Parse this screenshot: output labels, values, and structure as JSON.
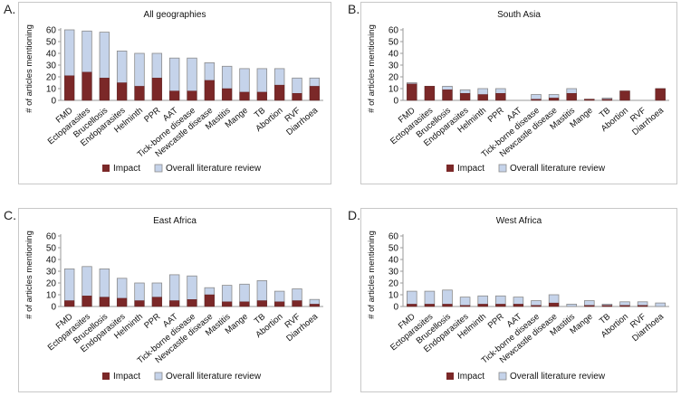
{
  "panel_letters": [
    "A.",
    "B.",
    "C.",
    "D."
  ],
  "chart_data": [
    {
      "type": "bar",
      "stacked": false,
      "overlapped": true,
      "title": "All geographies",
      "xlabel": "",
      "ylabel": "# of articles mentioning",
      "ylim": [
        0,
        60
      ],
      "yticks": [
        0,
        10,
        20,
        30,
        40,
        50,
        60
      ],
      "grid": false,
      "legend": "bottom",
      "categories": [
        "FMD",
        "Ectoparasites",
        "Brucellosis",
        "Endoparasites",
        "Helminth",
        "PPR",
        "AAT",
        "Tick-borne disease",
        "Newcastle disease",
        "Mastitis",
        "Mange",
        "TB",
        "Abortion",
        "RVF",
        "Diarrhoea"
      ],
      "series": [
        {
          "name": "Impact",
          "color": "#7b2828",
          "values": [
            21,
            24,
            19,
            15,
            12,
            19,
            8,
            8,
            17,
            10,
            7,
            7,
            13,
            6,
            12
          ]
        },
        {
          "name": "Overall literature review",
          "color": "#c5d3ea",
          "values": [
            60,
            59,
            58,
            42,
            40,
            40,
            36,
            36,
            32,
            29,
            27,
            27,
            27,
            19,
            19
          ]
        }
      ]
    },
    {
      "type": "bar",
      "stacked": false,
      "overlapped": true,
      "title": "South Asia",
      "xlabel": "",
      "ylabel": "# of articles mentioning",
      "ylim": [
        0,
        60
      ],
      "yticks": [
        0,
        10,
        20,
        30,
        40,
        50,
        60
      ],
      "grid": false,
      "legend": "bottom",
      "categories": [
        "FMD",
        "Ectoparasites",
        "Brucellosis",
        "Endoparasites",
        "Helminth",
        "PPR",
        "AAT",
        "Tick-borne disease",
        "Newcastle disease",
        "Mastitis",
        "Mange",
        "TB",
        "Abortion",
        "RVF",
        "Diarrhoea"
      ],
      "series": [
        {
          "name": "Impact",
          "color": "#7b2828",
          "values": [
            14,
            12,
            9,
            6,
            5,
            6,
            0,
            1,
            2,
            6,
            1,
            1,
            8,
            0,
            10
          ]
        },
        {
          "name": "Overall literature review",
          "color": "#c5d3ea",
          "values": [
            15,
            12,
            12,
            9,
            10,
            10,
            0,
            5,
            5,
            10,
            1,
            2,
            8,
            0,
            10
          ]
        }
      ]
    },
    {
      "type": "bar",
      "stacked": false,
      "overlapped": true,
      "title": "East Africa",
      "xlabel": "",
      "ylabel": "# of articles mentioning",
      "ylim": [
        0,
        60
      ],
      "yticks": [
        0,
        10,
        20,
        30,
        40,
        50,
        60
      ],
      "grid": false,
      "legend": "bottom",
      "categories": [
        "FMD",
        "Ectoparasites",
        "Brucellosis",
        "Endoparasites",
        "Helminth",
        "PPR",
        "AAT",
        "Tick-borne disease",
        "Newcastle disease",
        "Mastitis",
        "Mange",
        "TB",
        "Abortion",
        "RVF",
        "Diarrhoea"
      ],
      "series": [
        {
          "name": "Impact",
          "color": "#7b2828",
          "values": [
            5,
            9,
            8,
            7,
            5,
            8,
            5,
            6,
            10,
            4,
            4,
            5,
            4,
            5,
            2
          ]
        },
        {
          "name": "Overall literature review",
          "color": "#c5d3ea",
          "values": [
            32,
            34,
            32,
            24,
            20,
            20,
            27,
            26,
            16,
            18,
            19,
            22,
            13,
            15,
            6
          ]
        }
      ]
    },
    {
      "type": "bar",
      "stacked": false,
      "overlapped": true,
      "title": "West Africa",
      "xlabel": "",
      "ylabel": "# of articles mentioning",
      "ylim": [
        0,
        60
      ],
      "yticks": [
        0,
        10,
        20,
        30,
        40,
        50,
        60
      ],
      "grid": false,
      "legend": "bottom",
      "categories": [
        "FMD",
        "Ectoparasites",
        "Brucellosis",
        "Endoparasites",
        "Helminth",
        "PPR",
        "AAT",
        "Tick-borne disease",
        "Newcastle disease",
        "Mastitis",
        "Mange",
        "TB",
        "Abortion",
        "RVF",
        "Diarrhoea"
      ],
      "series": [
        {
          "name": "Impact",
          "color": "#7b2828",
          "values": [
            2,
            2,
            2,
            1,
            2,
            2,
            2,
            1,
            3,
            0,
            1,
            1,
            1,
            1,
            0
          ]
        },
        {
          "name": "Overall literature review",
          "color": "#c5d3ea",
          "values": [
            13,
            13,
            14,
            8,
            9,
            9,
            8,
            5,
            10,
            2,
            5,
            2,
            4,
            4,
            3
          ]
        }
      ]
    }
  ]
}
